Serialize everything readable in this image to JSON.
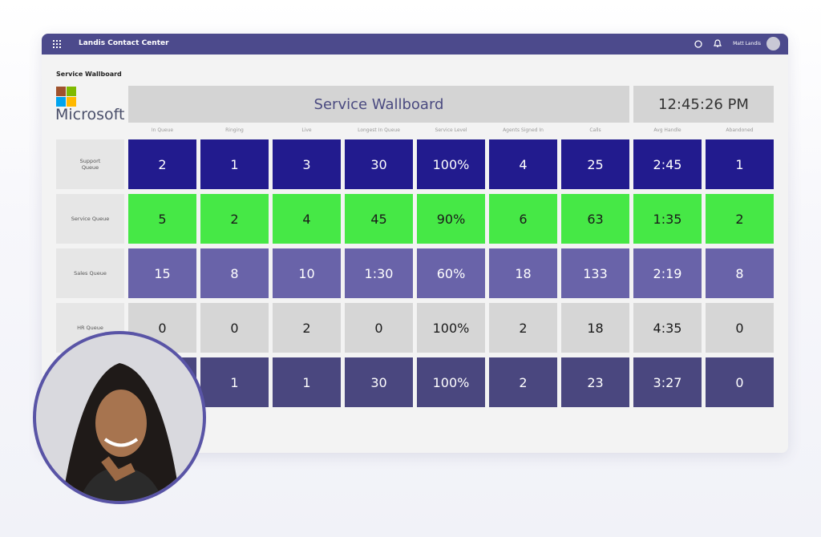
{
  "header": {
    "app_name": "Landis Contact Center",
    "user_name": "Matt Landis"
  },
  "page_label": "Service Wallboard",
  "logo_text": "Microsoft",
  "wallboard": {
    "title": "Service Wallboard",
    "clock": "12:45:26 PM",
    "columns": [
      "In Queue",
      "Ringing",
      "Live",
      "Longest In Queue",
      "Service Level",
      "Agents Signed In",
      "Calls",
      "Avg Handle",
      "Abandoned"
    ],
    "rows": [
      {
        "label": "Support Queue",
        "cells": [
          "2",
          "1",
          "3",
          "30",
          "100%",
          "4",
          "25",
          "2:45",
          "1"
        ]
      },
      {
        "label": "Service Queue",
        "cells": [
          "5",
          "2",
          "4",
          "45",
          "90%",
          "6",
          "63",
          "1:35",
          "2"
        ]
      },
      {
        "label": "Sales Queue",
        "cells": [
          "15",
          "8",
          "10",
          "1:30",
          "60%",
          "18",
          "133",
          "2:19",
          "8"
        ]
      },
      {
        "label": "HR Queue",
        "cells": [
          "0",
          "0",
          "2",
          "0",
          "100%",
          "2",
          "18",
          "4:35",
          "0"
        ]
      },
      {
        "label": null,
        "cells": [
          null,
          "1",
          "1",
          "30",
          "100%",
          "2",
          "23",
          "3:27",
          "0"
        ]
      }
    ]
  }
}
